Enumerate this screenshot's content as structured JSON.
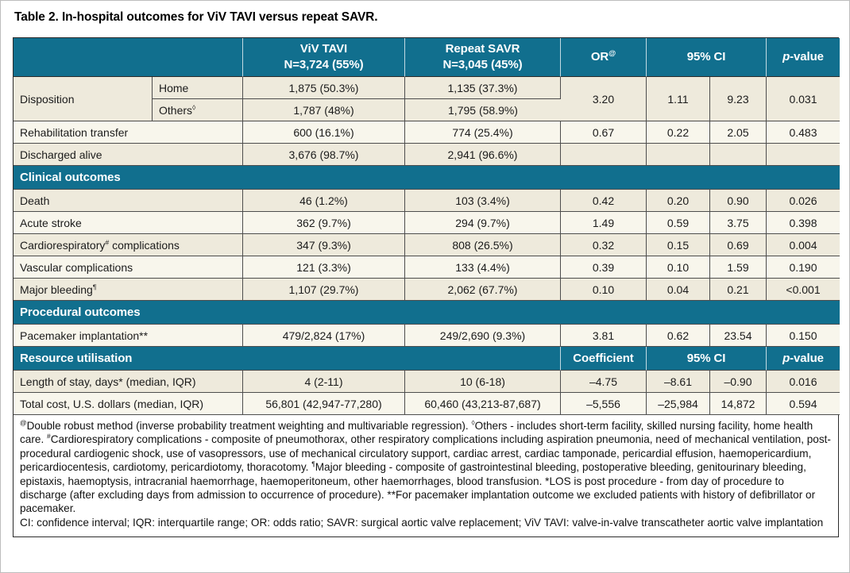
{
  "title": "Table 2. In-hospital outcomes for ViV TAVI versus repeat SAVR.",
  "colors": {
    "teal": "#116f8e",
    "row_dark": "#eeeadc",
    "row_light": "#f8f6ec",
    "frame": "#2b2b2b"
  },
  "table": {
    "header": {
      "viv_line1": "ViV TAVI",
      "viv_line2": "N=3,724 (55%)",
      "savr_line1": "Repeat SAVR",
      "savr_line2": "N=3,045 (45%)",
      "or_label": "OR",
      "or_sup": "@",
      "ci_label": "95% CI",
      "p_prefix": "p",
      "p_suffix": "-value"
    },
    "rows": [
      {
        "kind": "data",
        "shade": "dark",
        "cells": [
          {
            "t": "Disposition",
            "rowspan": 2,
            "align": "left",
            "name": "row-label"
          },
          {
            "t": "Home",
            "align": "left",
            "name": "row-sublabel"
          },
          {
            "t": "1,875 (50.3%)",
            "name": "viv-value"
          },
          {
            "t": "1,135 (37.3%)",
            "name": "savr-value"
          },
          {
            "t": "3.20",
            "rowspan": 2,
            "name": "or-value"
          },
          {
            "t": "1.11",
            "rowspan": 2,
            "name": "ci-low-value"
          },
          {
            "t": "9.23",
            "rowspan": 2,
            "name": "ci-high-value"
          },
          {
            "t": "0.031",
            "rowspan": 2,
            "name": "p-value"
          }
        ]
      },
      {
        "kind": "data",
        "shade": "dark",
        "cells": [
          {
            "t": "Others",
            "sup": "◊",
            "align": "left",
            "name": "row-sublabel"
          },
          {
            "t": "1,787 (48%)",
            "name": "viv-value"
          },
          {
            "t": "1,795 (58.9%)",
            "name": "savr-value"
          }
        ]
      },
      {
        "kind": "data",
        "shade": "light",
        "cells": [
          {
            "t": "Rehabilitation transfer",
            "colspan": 2,
            "align": "left",
            "name": "row-label"
          },
          {
            "t": "600 (16.1%)",
            "name": "viv-value"
          },
          {
            "t": "774 (25.4%)",
            "name": "savr-value"
          },
          {
            "t": "0.67",
            "name": "or-value"
          },
          {
            "t": "0.22",
            "name": "ci-low-value"
          },
          {
            "t": "2.05",
            "name": "ci-high-value"
          },
          {
            "t": "0.483",
            "name": "p-value"
          }
        ]
      },
      {
        "kind": "data",
        "shade": "dark",
        "cells": [
          {
            "t": "Discharged alive",
            "colspan": 2,
            "align": "left",
            "name": "row-label"
          },
          {
            "t": "3,676 (98.7%)",
            "name": "viv-value"
          },
          {
            "t": "2,941 (96.6%)",
            "name": "savr-value"
          },
          {
            "t": "",
            "name": "or-value"
          },
          {
            "t": "",
            "name": "ci-low-value"
          },
          {
            "t": "",
            "name": "ci-high-value"
          },
          {
            "t": "",
            "name": "p-value"
          }
        ]
      },
      {
        "kind": "section",
        "label": "Clinical outcomes"
      },
      {
        "kind": "data",
        "shade": "dark",
        "cells": [
          {
            "t": "Death",
            "colspan": 2,
            "align": "left",
            "name": "row-label"
          },
          {
            "t": "46 (1.2%)",
            "name": "viv-value"
          },
          {
            "t": "103 (3.4%)",
            "name": "savr-value"
          },
          {
            "t": "0.42",
            "name": "or-value"
          },
          {
            "t": "0.20",
            "name": "ci-low-value"
          },
          {
            "t": "0.90",
            "name": "ci-high-value"
          },
          {
            "t": "0.026",
            "name": "p-value"
          }
        ]
      },
      {
        "kind": "data",
        "shade": "light",
        "cells": [
          {
            "t": "Acute stroke",
            "colspan": 2,
            "align": "left",
            "name": "row-label"
          },
          {
            "t": "362 (9.7%)",
            "name": "viv-value"
          },
          {
            "t": "294 (9.7%)",
            "name": "savr-value"
          },
          {
            "t": "1.49",
            "name": "or-value"
          },
          {
            "t": "0.59",
            "name": "ci-low-value"
          },
          {
            "t": "3.75",
            "name": "ci-high-value"
          },
          {
            "t": "0.398",
            "name": "p-value"
          }
        ]
      },
      {
        "kind": "data",
        "shade": "dark",
        "cells": [
          {
            "t": "Cardiorespiratory",
            "sup": "#",
            "rest": " complications",
            "colspan": 2,
            "align": "left",
            "name": "row-label"
          },
          {
            "t": "347 (9.3%)",
            "name": "viv-value"
          },
          {
            "t": "808 (26.5%)",
            "name": "savr-value"
          },
          {
            "t": "0.32",
            "name": "or-value"
          },
          {
            "t": "0.15",
            "name": "ci-low-value"
          },
          {
            "t": "0.69",
            "name": "ci-high-value"
          },
          {
            "t": "0.004",
            "name": "p-value"
          }
        ]
      },
      {
        "kind": "data",
        "shade": "light",
        "cells": [
          {
            "t": "Vascular complications",
            "colspan": 2,
            "align": "left",
            "name": "row-label"
          },
          {
            "t": "121 (3.3%)",
            "name": "viv-value"
          },
          {
            "t": "133 (4.4%)",
            "name": "savr-value"
          },
          {
            "t": "0.39",
            "name": "or-value"
          },
          {
            "t": "0.10",
            "name": "ci-low-value"
          },
          {
            "t": "1.59",
            "name": "ci-high-value"
          },
          {
            "t": "0.190",
            "name": "p-value"
          }
        ]
      },
      {
        "kind": "data",
        "shade": "dark",
        "cells": [
          {
            "t": "Major bleeding",
            "sup": "¶",
            "colspan": 2,
            "align": "left",
            "name": "row-label"
          },
          {
            "t": "1,107 (29.7%)",
            "name": "viv-value"
          },
          {
            "t": "2,062 (67.7%)",
            "name": "savr-value"
          },
          {
            "t": "0.10",
            "name": "or-value"
          },
          {
            "t": "0.04",
            "name": "ci-low-value"
          },
          {
            "t": "0.21",
            "name": "ci-high-value"
          },
          {
            "t": "<0.001",
            "name": "p-value"
          }
        ]
      },
      {
        "kind": "section",
        "label": "Procedural outcomes"
      },
      {
        "kind": "data",
        "shade": "light",
        "cells": [
          {
            "t": "Pacemaker implantation**",
            "colspan": 2,
            "align": "left",
            "name": "row-label"
          },
          {
            "t": "479/2,824 (17%)",
            "name": "viv-value"
          },
          {
            "t": "249/2,690 (9.3%)",
            "name": "savr-value"
          },
          {
            "t": "3.81",
            "name": "or-value"
          },
          {
            "t": "0.62",
            "name": "ci-low-value"
          },
          {
            "t": "23.54",
            "name": "ci-high-value"
          },
          {
            "t": "0.150",
            "name": "p-value"
          }
        ]
      },
      {
        "kind": "subheader",
        "cells": [
          {
            "t": "Resource utilisation",
            "colspan": 4,
            "align": "left",
            "name": "section-label"
          },
          {
            "t": "Coefficient",
            "name": "coefficient-header"
          },
          {
            "t": "95% CI",
            "colspan": 2,
            "name": "ci-subheader"
          },
          {
            "italic_prefix": "p",
            "t": "-value",
            "name": "p-value-subheader"
          }
        ]
      },
      {
        "kind": "data",
        "shade": "dark",
        "cells": [
          {
            "t": "Length of stay, days* (median, IQR)",
            "colspan": 2,
            "align": "left",
            "name": "row-label"
          },
          {
            "t": "4 (2-11)",
            "name": "viv-value"
          },
          {
            "t": "10 (6-18)",
            "name": "savr-value"
          },
          {
            "t": "–4.75",
            "name": "coefficient-value"
          },
          {
            "t": "–8.61",
            "name": "ci-low-value"
          },
          {
            "t": "–0.90",
            "name": "ci-high-value"
          },
          {
            "t": "0.016",
            "name": "p-value"
          }
        ]
      },
      {
        "kind": "data",
        "shade": "light",
        "cells": [
          {
            "t": "Total cost, U.S. dollars (median, IQR)",
            "colspan": 2,
            "align": "left",
            "name": "row-label"
          },
          {
            "t": "56,801 (42,947-77,280)",
            "name": "viv-value"
          },
          {
            "t": "60,460 (43,213-87,687)",
            "name": "savr-value"
          },
          {
            "t": "–5,556",
            "name": "coefficient-value"
          },
          {
            "t": "–25,984",
            "name": "ci-low-value"
          },
          {
            "t": "14,872",
            "name": "ci-high-value"
          },
          {
            "t": "0.594",
            "name": "p-value"
          }
        ]
      }
    ]
  },
  "footnote": [
    {
      "sup": "@"
    },
    {
      "t": "Double robust method (inverse probability treatment weighting and multivariable regression). "
    },
    {
      "sup": "◊"
    },
    {
      "t": "Others - includes short-term facility, skilled nursing facility, home health care. "
    },
    {
      "sup": "#"
    },
    {
      "t": "Cardiorespiratory complications - composite of pneumothorax, other respiratory complications including aspiration pneumonia, need of mechanical ventilation, post-procedural cardiogenic shock, use of vasopressors, use of mechanical circulatory support, cardiac arrest, cardiac tamponade, pericardial effusion, haemopericardium, pericardiocentesis, cardiotomy, pericardiotomy, thoracotomy. "
    },
    {
      "sup": "¶"
    },
    {
      "t": "Major bleeding - composite of gastrointestinal bleeding, postoperative bleeding, genitourinary bleeding, epistaxis, haemoptysis, intracranial haemorrhage, haemoperitoneum, other haemorrhages, blood transfusion. *LOS is post procedure - from day of procedure to discharge (after excluding days from admission to occurrence of procedure). **For pacemaker implantation outcome we excluded patients with history of defibrillator or pacemaker."
    },
    {
      "br": true
    },
    {
      "t": "CI: confidence interval; IQR: interquartile range; OR: odds ratio; SAVR: surgical aortic valve replacement; ViV TAVI: valve-in-valve transcatheter aortic valve implantation"
    }
  ]
}
